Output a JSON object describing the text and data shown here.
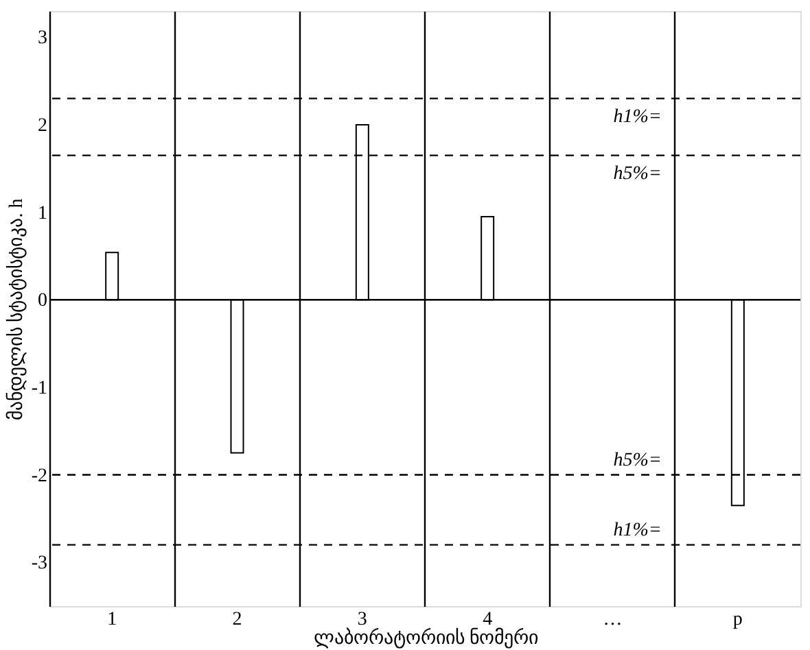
{
  "chart_data": {
    "type": "bar",
    "xlabel": "ლაბორატორიის ნომერი",
    "ylabel": "მანდელის სტატისტიკა. h",
    "categories": [
      "1",
      "2",
      "3",
      "4",
      "…",
      "p"
    ],
    "values": [
      0.54,
      -1.75,
      2.0,
      0.95,
      null,
      -2.35
    ],
    "color": "#ffffff",
    "ylim": [
      -3.5,
      3.3
    ],
    "yticks": [
      -3,
      -2,
      -1,
      0,
      1,
      2,
      3
    ],
    "grid": "x",
    "ref_lines": [
      {
        "axis": "y",
        "value": 0,
        "label": null,
        "line_style": "solid"
      },
      {
        "axis": "y",
        "value": 2.3,
        "label": "h1%=",
        "line_style": "dashed"
      },
      {
        "axis": "y",
        "value": 1.65,
        "label": "h5%=",
        "line_style": "dashed"
      },
      {
        "axis": "y",
        "value": -2.0,
        "label": "h5%=",
        "line_style": "dashed"
      },
      {
        "axis": "y",
        "value": -2.8,
        "label": "h1%=",
        "line_style": "dashed"
      }
    ]
  }
}
